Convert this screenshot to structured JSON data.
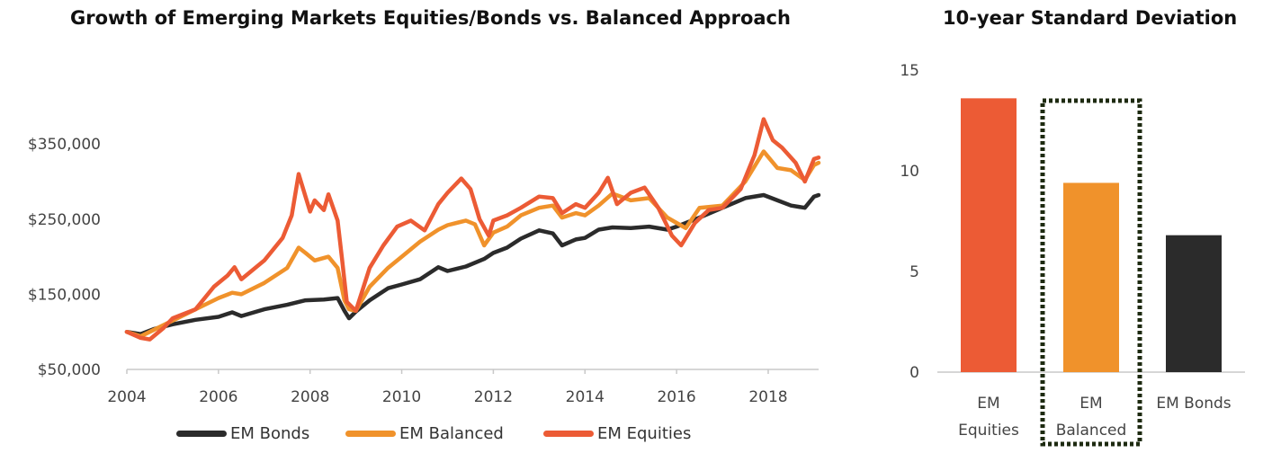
{
  "chart_data": [
    {
      "type": "line",
      "title": "Growth of Emerging Markets Equities/Bonds vs. Balanced Approach",
      "xlabel": "",
      "ylabel": "",
      "x_ticks": [
        "2004",
        "2006",
        "2008",
        "2010",
        "2012",
        "2014",
        "2016",
        "2018"
      ],
      "y_ticks": [
        "$50,000",
        "$150,000",
        "$250,000",
        "$350,000"
      ],
      "xlim": [
        2004,
        2019.1
      ],
      "ylim": [
        50000,
        410000
      ],
      "legend_position": "bottom",
      "grid": false,
      "series": [
        {
          "name": "EM Bonds",
          "color": "#2b2b2b",
          "points": [
            [
              2004.0,
              100000
            ],
            [
              2004.3,
              97000
            ],
            [
              2004.6,
              104000
            ],
            [
              2005.0,
              110000
            ],
            [
              2005.5,
              116000
            ],
            [
              2006.0,
              120000
            ],
            [
              2006.3,
              126000
            ],
            [
              2006.5,
              121000
            ],
            [
              2007.0,
              130000
            ],
            [
              2007.5,
              136000
            ],
            [
              2007.9,
              142000
            ],
            [
              2008.3,
              143000
            ],
            [
              2008.6,
              145000
            ],
            [
              2008.75,
              128000
            ],
            [
              2008.85,
              118000
            ],
            [
              2009.0,
              127000
            ],
            [
              2009.3,
              142000
            ],
            [
              2009.7,
              158000
            ],
            [
              2010.0,
              163000
            ],
            [
              2010.4,
              170000
            ],
            [
              2010.8,
              186000
            ],
            [
              2011.0,
              181000
            ],
            [
              2011.4,
              187000
            ],
            [
              2011.8,
              197000
            ],
            [
              2012.0,
              205000
            ],
            [
              2012.3,
              212000
            ],
            [
              2012.6,
              224000
            ],
            [
              2013.0,
              235000
            ],
            [
              2013.3,
              231000
            ],
            [
              2013.5,
              215000
            ],
            [
              2013.8,
              223000
            ],
            [
              2014.0,
              225000
            ],
            [
              2014.3,
              236000
            ],
            [
              2014.6,
              239000
            ],
            [
              2015.0,
              238000
            ],
            [
              2015.4,
              240000
            ],
            [
              2015.8,
              236000
            ],
            [
              2016.0,
              240000
            ],
            [
              2016.5,
              252000
            ],
            [
              2017.0,
              265000
            ],
            [
              2017.5,
              278000
            ],
            [
              2017.9,
              282000
            ],
            [
              2018.2,
              275000
            ],
            [
              2018.5,
              268000
            ],
            [
              2018.8,
              265000
            ],
            [
              2019.0,
              280000
            ],
            [
              2019.1,
              282000
            ]
          ]
        },
        {
          "name": "EM Balanced",
          "color": "#f0922b",
          "points": [
            [
              2004.0,
              100000
            ],
            [
              2004.3,
              94000
            ],
            [
              2004.6,
              103000
            ],
            [
              2005.0,
              115000
            ],
            [
              2005.5,
              130000
            ],
            [
              2006.0,
              145000
            ],
            [
              2006.3,
              152000
            ],
            [
              2006.5,
              150000
            ],
            [
              2007.0,
              165000
            ],
            [
              2007.5,
              185000
            ],
            [
              2007.75,
              212000
            ],
            [
              2007.9,
              205000
            ],
            [
              2008.1,
              195000
            ],
            [
              2008.4,
              200000
            ],
            [
              2008.6,
              185000
            ],
            [
              2008.75,
              142000
            ],
            [
              2008.85,
              130000
            ],
            [
              2009.0,
              128000
            ],
            [
              2009.3,
              160000
            ],
            [
              2009.7,
              185000
            ],
            [
              2010.0,
              200000
            ],
            [
              2010.4,
              220000
            ],
            [
              2010.8,
              236000
            ],
            [
              2011.0,
              242000
            ],
            [
              2011.4,
              248000
            ],
            [
              2011.6,
              243000
            ],
            [
              2011.8,
              215000
            ],
            [
              2012.0,
              232000
            ],
            [
              2012.3,
              240000
            ],
            [
              2012.6,
              255000
            ],
            [
              2013.0,
              265000
            ],
            [
              2013.3,
              268000
            ],
            [
              2013.5,
              252000
            ],
            [
              2013.8,
              258000
            ],
            [
              2014.0,
              255000
            ],
            [
              2014.3,
              268000
            ],
            [
              2014.6,
              284000
            ],
            [
              2015.0,
              275000
            ],
            [
              2015.4,
              278000
            ],
            [
              2015.8,
              252000
            ],
            [
              2016.0,
              245000
            ],
            [
              2016.2,
              238000
            ],
            [
              2016.5,
              265000
            ],
            [
              2017.0,
              268000
            ],
            [
              2017.5,
              300000
            ],
            [
              2017.9,
              340000
            ],
            [
              2018.2,
              318000
            ],
            [
              2018.5,
              315000
            ],
            [
              2018.8,
              302000
            ],
            [
              2019.0,
              322000
            ],
            [
              2019.1,
              325000
            ]
          ]
        },
        {
          "name": "EM Equities",
          "color": "#ec5b35",
          "points": [
            [
              2004.0,
              100000
            ],
            [
              2004.3,
              92000
            ],
            [
              2004.5,
              90000
            ],
            [
              2004.8,
              105000
            ],
            [
              2005.0,
              118000
            ],
            [
              2005.5,
              130000
            ],
            [
              2005.9,
              160000
            ],
            [
              2006.2,
              175000
            ],
            [
              2006.35,
              186000
            ],
            [
              2006.5,
              170000
            ],
            [
              2007.0,
              195000
            ],
            [
              2007.4,
              225000
            ],
            [
              2007.6,
              255000
            ],
            [
              2007.75,
              310000
            ],
            [
              2007.9,
              280000
            ],
            [
              2008.0,
              260000
            ],
            [
              2008.1,
              275000
            ],
            [
              2008.3,
              262000
            ],
            [
              2008.4,
              283000
            ],
            [
              2008.6,
              248000
            ],
            [
              2008.7,
              195000
            ],
            [
              2008.8,
              140000
            ],
            [
              2009.0,
              128000
            ],
            [
              2009.3,
              185000
            ],
            [
              2009.6,
              215000
            ],
            [
              2009.9,
              240000
            ],
            [
              2010.2,
              248000
            ],
            [
              2010.5,
              235000
            ],
            [
              2010.8,
              270000
            ],
            [
              2011.0,
              285000
            ],
            [
              2011.3,
              304000
            ],
            [
              2011.5,
              290000
            ],
            [
              2011.7,
              250000
            ],
            [
              2011.9,
              228000
            ],
            [
              2012.0,
              248000
            ],
            [
              2012.3,
              255000
            ],
            [
              2012.6,
              265000
            ],
            [
              2013.0,
              280000
            ],
            [
              2013.3,
              278000
            ],
            [
              2013.5,
              258000
            ],
            [
              2013.8,
              270000
            ],
            [
              2014.0,
              265000
            ],
            [
              2014.3,
              285000
            ],
            [
              2014.5,
              305000
            ],
            [
              2014.7,
              270000
            ],
            [
              2015.0,
              285000
            ],
            [
              2015.3,
              292000
            ],
            [
              2015.6,
              265000
            ],
            [
              2015.9,
              228000
            ],
            [
              2016.1,
              215000
            ],
            [
              2016.4,
              245000
            ],
            [
              2016.7,
              262000
            ],
            [
              2017.0,
              265000
            ],
            [
              2017.4,
              290000
            ],
            [
              2017.7,
              335000
            ],
            [
              2017.9,
              383000
            ],
            [
              2018.1,
              355000
            ],
            [
              2018.3,
              345000
            ],
            [
              2018.6,
              325000
            ],
            [
              2018.8,
              300000
            ],
            [
              2019.0,
              330000
            ],
            [
              2019.1,
              332000
            ]
          ]
        }
      ]
    },
    {
      "type": "bar",
      "title": "10-year Standard Deviation",
      "categories": [
        "EM Equities",
        "EM Balanced",
        "EM Bonds"
      ],
      "values": [
        13.6,
        9.4,
        6.8
      ],
      "colors": [
        "#ec5b35",
        "#f0922b",
        "#2b2b2b"
      ],
      "ylim": [
        0,
        15
      ],
      "y_ticks": [
        "0",
        "5",
        "10",
        "15"
      ],
      "highlighted_category": "EM Balanced",
      "grid": false
    }
  ]
}
